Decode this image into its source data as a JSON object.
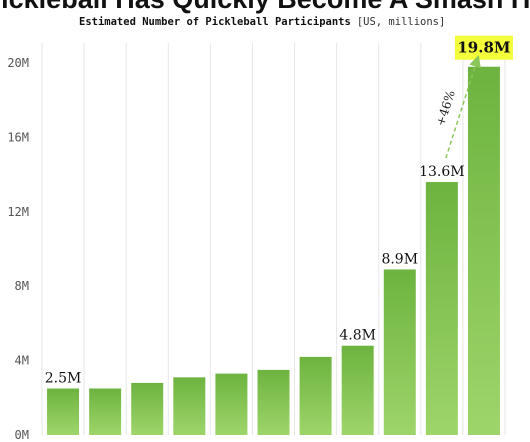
{
  "chart_data": {
    "type": "bar",
    "title": "Pickleball Has Quickly Become A Smash Hit",
    "subtitle": "Estimated Number of Pickleball Participants",
    "subtitle_unit": "[US, millions]",
    "categories": [
      "",
      "",
      "",
      "",
      "",
      "",
      "",
      "",
      "",
      "",
      ""
    ],
    "values": [
      2.5,
      2.5,
      2.8,
      3.1,
      3.3,
      3.5,
      4.2,
      4.8,
      8.9,
      13.6,
      19.8
    ],
    "data_labels": [
      "2.5M",
      "",
      "",
      "",
      "",
      "",
      "",
      "4.8M",
      "8.9M",
      "13.6M",
      "19.8M"
    ],
    "highlight_label_index": 10,
    "y_ticks": [
      {
        "value": 0,
        "label": "0M"
      },
      {
        "value": 4,
        "label": "4M"
      },
      {
        "value": 8,
        "label": "8M"
      },
      {
        "value": 12,
        "label": "12M"
      },
      {
        "value": 16,
        "label": "16M"
      },
      {
        "value": 20,
        "label": "20M"
      }
    ],
    "ylim": [
      0,
      20
    ],
    "grid": "vertical-only",
    "annotation": {
      "text": "+46%",
      "from_index": 9,
      "to_index": 10
    },
    "colors": {
      "bar_top": "#6db33f",
      "bar_bottom": "#9ed56b",
      "highlight": "#f3ff3a",
      "grid": "#e6e6e6",
      "arrow": "#8ac65a"
    }
  }
}
